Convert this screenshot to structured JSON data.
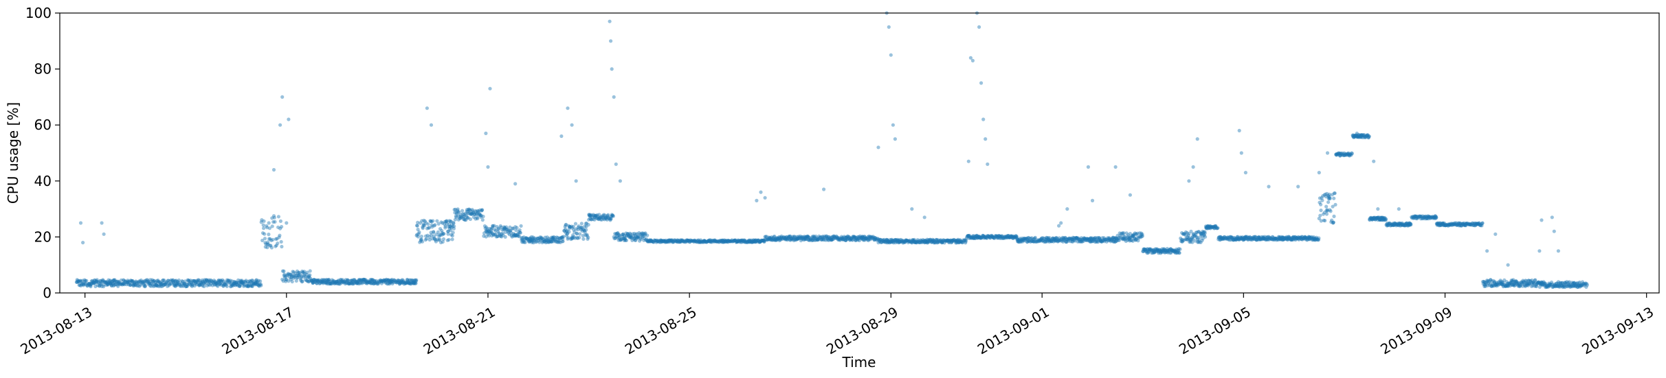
{
  "chart_data": {
    "type": "scatter",
    "title": "",
    "xlabel": "Time",
    "ylabel": "CPU usage [%]",
    "x_type": "date",
    "xlim": [
      "2013-08-12T12:00",
      "2013-09-13T06:00"
    ],
    "ylim": [
      0,
      100
    ],
    "x_ticks": [
      "2013-08-13",
      "2013-08-17",
      "2013-08-21",
      "2013-08-25",
      "2013-08-29",
      "2013-09-01",
      "2013-09-05",
      "2013-09-09",
      "2013-09-13"
    ],
    "y_ticks": [
      0,
      20,
      40,
      60,
      80,
      100
    ],
    "grid": false,
    "legend": "none",
    "series": [
      {
        "color": "#1f77b4",
        "marker_opacity": 0.45,
        "segments": [
          {
            "start": "2013-08-12T20:00",
            "end": "2013-08-16T12:00",
            "baseline": 3.5,
            "spread": 1.2
          },
          {
            "start": "2013-08-16T12:00",
            "end": "2013-08-16T22:00",
            "baseline": 22,
            "spread": 6
          },
          {
            "start": "2013-08-16T22:00",
            "end": "2013-08-17T12:00",
            "baseline": 6,
            "spread": 2
          },
          {
            "start": "2013-08-17T12:00",
            "end": "2013-08-19T14:00",
            "baseline": 4,
            "spread": 0.8
          },
          {
            "start": "2013-08-19T14:00",
            "end": "2013-08-20T08:00",
            "baseline": 22,
            "spread": 4
          },
          {
            "start": "2013-08-20T08:00",
            "end": "2013-08-20T22:00",
            "baseline": 28,
            "spread": 2
          },
          {
            "start": "2013-08-20T22:00",
            "end": "2013-08-21T16:00",
            "baseline": 22,
            "spread": 2
          },
          {
            "start": "2013-08-21T16:00",
            "end": "2013-08-22T12:00",
            "baseline": 19,
            "spread": 1
          },
          {
            "start": "2013-08-22T12:00",
            "end": "2013-08-23T00:00",
            "baseline": 22,
            "spread": 3
          },
          {
            "start": "2013-08-23T00:00",
            "end": "2013-08-23T12:00",
            "baseline": 27,
            "spread": 1
          },
          {
            "start": "2013-08-23T12:00",
            "end": "2013-08-24T04:00",
            "baseline": 20,
            "spread": 1.5
          },
          {
            "start": "2013-08-24T04:00",
            "end": "2013-08-26T12:00",
            "baseline": 18.5,
            "spread": 0.4
          },
          {
            "start": "2013-08-26T12:00",
            "end": "2013-08-28T18:00",
            "baseline": 19.5,
            "spread": 0.8
          },
          {
            "start": "2013-08-28T18:00",
            "end": "2013-08-30T12:00",
            "baseline": 18.5,
            "spread": 0.6
          },
          {
            "start": "2013-08-30T12:00",
            "end": "2013-08-31T12:00",
            "baseline": 20,
            "spread": 0.5
          },
          {
            "start": "2013-08-31T12:00",
            "end": "2013-09-02T12:00",
            "baseline": 19,
            "spread": 0.8
          },
          {
            "start": "2013-09-02T12:00",
            "end": "2013-09-03T00:00",
            "baseline": 20,
            "spread": 1.5
          },
          {
            "start": "2013-09-03T00:00",
            "end": "2013-09-03T18:00",
            "baseline": 15,
            "spread": 0.8
          },
          {
            "start": "2013-09-03T18:00",
            "end": "2013-09-04T06:00",
            "baseline": 20,
            "spread": 2
          },
          {
            "start": "2013-09-04T06:00",
            "end": "2013-09-04T12:00",
            "baseline": 23.5,
            "spread": 0.5
          },
          {
            "start": "2013-09-04T12:00",
            "end": "2013-09-06T12:00",
            "baseline": 19.5,
            "spread": 0.6
          },
          {
            "start": "2013-09-06T12:00",
            "end": "2013-09-06T20:00",
            "baseline": 30,
            "spread": 6
          },
          {
            "start": "2013-09-06T20:00",
            "end": "2013-09-07T04:00",
            "baseline": 49.5,
            "spread": 0.5
          },
          {
            "start": "2013-09-07T04:00",
            "end": "2013-09-07T12:00",
            "baseline": 56,
            "spread": 0.5
          },
          {
            "start": "2013-09-07T12:00",
            "end": "2013-09-07T20:00",
            "baseline": 26.5,
            "spread": 0.5
          },
          {
            "start": "2013-09-07T20:00",
            "end": "2013-09-08T08:00",
            "baseline": 24.5,
            "spread": 0.5
          },
          {
            "start": "2013-09-08T08:00",
            "end": "2013-09-08T20:00",
            "baseline": 27,
            "spread": 0.5
          },
          {
            "start": "2013-09-08T20:00",
            "end": "2013-09-09T18:00",
            "baseline": 24.5,
            "spread": 0.5
          },
          {
            "start": "2013-09-09T18:00",
            "end": "2013-09-10T20:00",
            "baseline": 3.5,
            "spread": 1.2
          },
          {
            "start": "2013-09-10T20:00",
            "end": "2013-09-11T20:00",
            "baseline": 3,
            "spread": 1
          }
        ],
        "spikes": [
          {
            "x": "2013-08-12T22:00",
            "y": 25
          },
          {
            "x": "2013-08-12T23:00",
            "y": 18
          },
          {
            "x": "2013-08-13T08:00",
            "y": 25
          },
          {
            "x": "2013-08-13T09:00",
            "y": 21
          },
          {
            "x": "2013-08-16T18:00",
            "y": 44
          },
          {
            "x": "2013-08-16T21:00",
            "y": 60
          },
          {
            "x": "2013-08-16T22:00",
            "y": 70
          },
          {
            "x": "2013-08-17T01:00",
            "y": 62
          },
          {
            "x": "2013-08-17T00:00",
            "y": 25
          },
          {
            "x": "2013-08-19T19:00",
            "y": 66
          },
          {
            "x": "2013-08-19T21:00",
            "y": 60
          },
          {
            "x": "2013-08-20T23:00",
            "y": 57
          },
          {
            "x": "2013-08-21T00:00",
            "y": 45
          },
          {
            "x": "2013-08-21T01:00",
            "y": 73
          },
          {
            "x": "2013-08-21T13:00",
            "y": 39
          },
          {
            "x": "2013-08-22T11:00",
            "y": 56
          },
          {
            "x": "2013-08-22T14:00",
            "y": 66
          },
          {
            "x": "2013-08-22T16:00",
            "y": 60
          },
          {
            "x": "2013-08-22T18:00",
            "y": 40
          },
          {
            "x": "2013-08-23T10:00",
            "y": 97
          },
          {
            "x": "2013-08-23T10:30",
            "y": 90
          },
          {
            "x": "2013-08-23T11:00",
            "y": 80
          },
          {
            "x": "2013-08-23T12:00",
            "y": 70
          },
          {
            "x": "2013-08-23T13:00",
            "y": 46
          },
          {
            "x": "2013-08-23T15:00",
            "y": 40
          },
          {
            "x": "2013-08-26T08:00",
            "y": 33
          },
          {
            "x": "2013-08-26T10:00",
            "y": 36
          },
          {
            "x": "2013-08-26T12:00",
            "y": 34
          },
          {
            "x": "2013-08-27T16:00",
            "y": 37
          },
          {
            "x": "2013-08-28T18:00",
            "y": 52
          },
          {
            "x": "2013-08-28T22:00",
            "y": 100
          },
          {
            "x": "2013-08-28T23:00",
            "y": 95
          },
          {
            "x": "2013-08-29T00:00",
            "y": 85
          },
          {
            "x": "2013-08-29T01:00",
            "y": 60
          },
          {
            "x": "2013-08-29T02:00",
            "y": 55
          },
          {
            "x": "2013-08-29T10:00",
            "y": 30
          },
          {
            "x": "2013-08-29T16:00",
            "y": 27
          },
          {
            "x": "2013-08-30T13:00",
            "y": 47
          },
          {
            "x": "2013-08-30T14:00",
            "y": 84
          },
          {
            "x": "2013-08-30T15:00",
            "y": 83
          },
          {
            "x": "2013-08-30T17:00",
            "y": 100
          },
          {
            "x": "2013-08-30T18:00",
            "y": 95
          },
          {
            "x": "2013-08-30T19:00",
            "y": 75
          },
          {
            "x": "2013-08-30T20:00",
            "y": 62
          },
          {
            "x": "2013-08-30T21:00",
            "y": 55
          },
          {
            "x": "2013-08-30T22:00",
            "y": 46
          },
          {
            "x": "2013-09-01T08:00",
            "y": 24
          },
          {
            "x": "2013-09-01T09:00",
            "y": 25
          },
          {
            "x": "2013-09-01T12:00",
            "y": 30
          },
          {
            "x": "2013-09-01T22:00",
            "y": 45
          },
          {
            "x": "2013-09-02T00:00",
            "y": 33
          },
          {
            "x": "2013-09-02T11:00",
            "y": 45
          },
          {
            "x": "2013-09-02T18:00",
            "y": 35
          },
          {
            "x": "2013-09-03T22:00",
            "y": 40
          },
          {
            "x": "2013-09-04T00:00",
            "y": 45
          },
          {
            "x": "2013-09-04T02:00",
            "y": 55
          },
          {
            "x": "2013-09-04T22:00",
            "y": 58
          },
          {
            "x": "2013-09-04T23:00",
            "y": 50
          },
          {
            "x": "2013-09-05T01:00",
            "y": 43
          },
          {
            "x": "2013-09-05T12:00",
            "y": 38
          },
          {
            "x": "2013-09-06T02:00",
            "y": 38
          },
          {
            "x": "2013-09-06T12:00",
            "y": 43
          },
          {
            "x": "2013-09-06T16:00",
            "y": 50
          },
          {
            "x": "2013-09-07T06:00",
            "y": 57
          },
          {
            "x": "2013-09-07T14:00",
            "y": 47
          },
          {
            "x": "2013-09-07T16:00",
            "y": 30
          },
          {
            "x": "2013-09-08T02:00",
            "y": 30
          },
          {
            "x": "2013-09-09T20:00",
            "y": 15
          },
          {
            "x": "2013-09-10T00:00",
            "y": 21
          },
          {
            "x": "2013-09-10T06:00",
            "y": 10
          },
          {
            "x": "2013-09-10T21:00",
            "y": 15
          },
          {
            "x": "2013-09-10T22:00",
            "y": 26
          },
          {
            "x": "2013-09-11T03:00",
            "y": 27
          },
          {
            "x": "2013-09-11T04:00",
            "y": 22
          },
          {
            "x": "2013-09-11T06:00",
            "y": 15
          }
        ]
      }
    ]
  }
}
